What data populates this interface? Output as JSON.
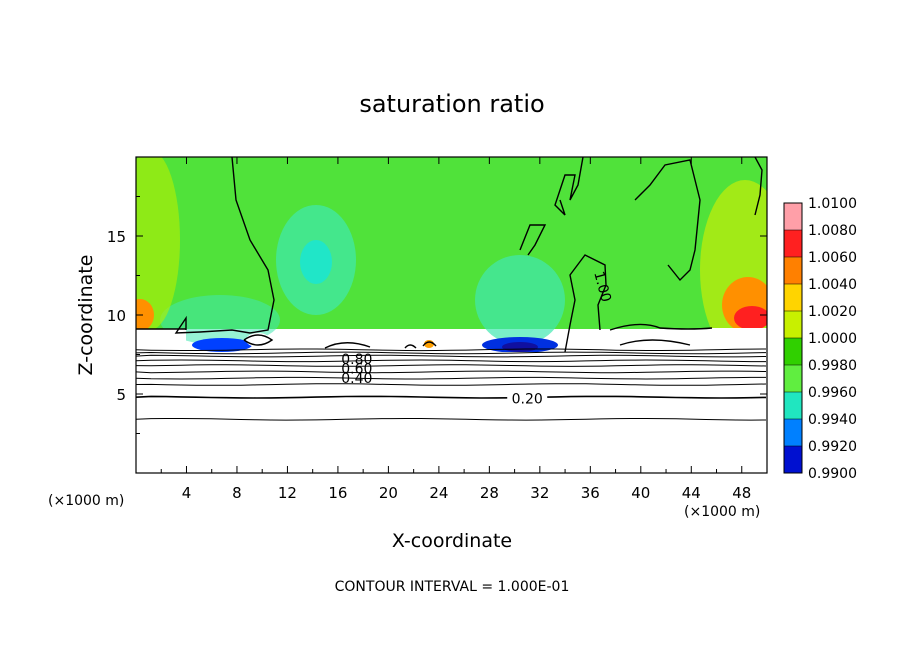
{
  "chart_data": {
    "type": "heatmap",
    "title": "saturation ratio",
    "xlabel": "X-coordinate",
    "ylabel": "Z-coordinate",
    "x_unit": "(×1000 m)",
    "y_unit": "(×1000 m)",
    "xlim": [
      0,
      50
    ],
    "ylim": [
      0,
      20
    ],
    "x_ticks": [
      "4",
      "8",
      "12",
      "16",
      "20",
      "24",
      "28",
      "32",
      "36",
      "40",
      "44",
      "48"
    ],
    "y_ticks": [
      "5",
      "10",
      "15"
    ],
    "footer": "CONTOUR INTERVAL = 1.000E-01",
    "colorbar": {
      "labels": [
        "1.0100",
        "1.0080",
        "1.0060",
        "1.0040",
        "1.0020",
        "1.0000",
        "0.9980",
        "0.9960",
        "0.9940",
        "0.9920",
        "0.9900"
      ],
      "colors": [
        "#ff9fa8",
        "#ff2020",
        "#ff8000",
        "#ffd400",
        "#c8f000",
        "#30d000",
        "#60ee40",
        "#20e6c0",
        "#0080ff",
        "#0010d0",
        "#7a10a8"
      ]
    },
    "contour_labels": [
      {
        "text": "1.00",
        "x": 37.0,
        "z": 11.8
      },
      {
        "text": "0.80",
        "x": 17.5,
        "z": 7.2
      },
      {
        "text": "0.60",
        "x": 17.5,
        "z": 6.6
      },
      {
        "text": "0.40",
        "x": 17.5,
        "z": 6.0
      },
      {
        "text": "0.20",
        "x": 31.0,
        "z": 4.7
      }
    ],
    "contour_lines_z": [
      3.4,
      4.8,
      5.6,
      6.0,
      6.4,
      6.8,
      7.1,
      7.4,
      7.6,
      7.8
    ],
    "cloud_base_z": 7.8,
    "saturated_layer_top_z": 9.2
  }
}
